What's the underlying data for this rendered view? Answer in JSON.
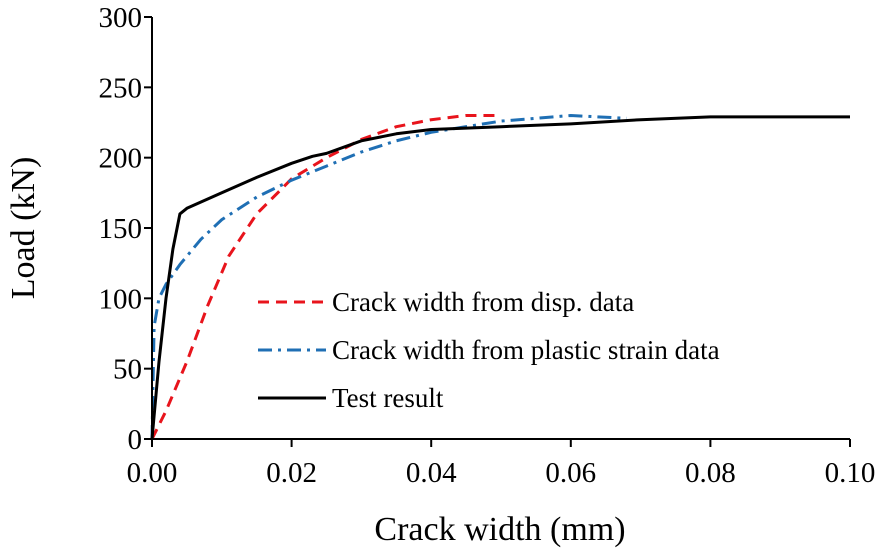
{
  "chart_data": {
    "type": "line",
    "title": "",
    "xlabel": "Crack width (mm)",
    "ylabel": "Load (kN)",
    "xlim": [
      0,
      0.1
    ],
    "ylim": [
      0,
      300
    ],
    "x_ticks": [
      0,
      0.02,
      0.04,
      0.06,
      0.08,
      0.1
    ],
    "x_tick_labels": [
      "0.00",
      "0.02",
      "0.04",
      "0.06",
      "0.08",
      "0.10"
    ],
    "y_ticks": [
      0,
      50,
      100,
      150,
      200,
      250,
      300
    ],
    "y_tick_labels": [
      "0",
      "50",
      "100",
      "150",
      "200",
      "250",
      "300"
    ],
    "grid": false,
    "legend_position": "center-right",
    "series": [
      {
        "name": "Crack width from disp. data",
        "color": "#e8141c",
        "style": "dashed",
        "x": [
          0,
          0.002,
          0.005,
          0.008,
          0.011,
          0.015,
          0.02,
          0.025,
          0.03,
          0.035,
          0.04,
          0.045,
          0.05
        ],
        "y": [
          0,
          20,
          55,
          95,
          130,
          160,
          185,
          200,
          213,
          222,
          227,
          230,
          230
        ]
      },
      {
        "name": "Crack width from plastic strain data",
        "color": "#1f6fb4",
        "style": "dashdot",
        "x": [
          0,
          0.0003,
          0.001,
          0.002,
          0.004,
          0.007,
          0.01,
          0.015,
          0.02,
          0.025,
          0.03,
          0.035,
          0.04,
          0.05,
          0.06,
          0.068
        ],
        "y": [
          0,
          80,
          100,
          110,
          124,
          142,
          156,
          172,
          184,
          194,
          204,
          212,
          218,
          226,
          230,
          228
        ]
      },
      {
        "name": "Test result",
        "color": "#000000",
        "style": "solid",
        "x": [
          0,
          0.001,
          0.002,
          0.003,
          0.004,
          0.005,
          0.01,
          0.015,
          0.02,
          0.023,
          0.025,
          0.03,
          0.035,
          0.04,
          0.05,
          0.06,
          0.07,
          0.08,
          0.09,
          0.1
        ],
        "y": [
          0,
          55,
          100,
          135,
          160,
          164,
          175,
          186,
          196,
          201,
          203,
          212,
          217,
          220,
          222,
          224,
          227,
          229,
          229,
          229
        ]
      }
    ]
  }
}
